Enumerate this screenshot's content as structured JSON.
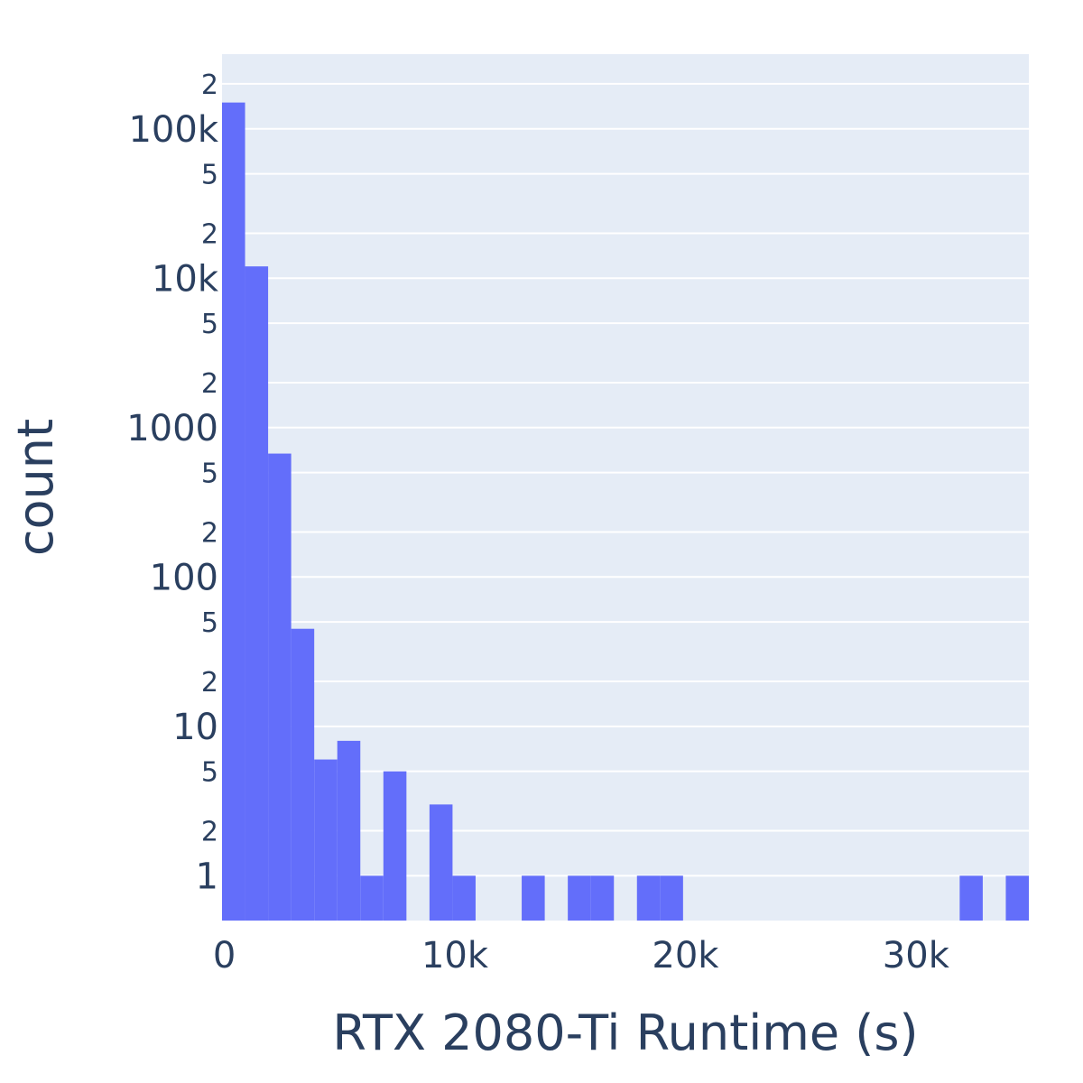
{
  "chart_data": {
    "type": "bar",
    "subtype": "histogram",
    "xlabel": "RTX 2080-Ti Runtime (s)",
    "ylabel": "count",
    "y_scale": "log",
    "x_range": [
      -100,
      34900
    ],
    "y_range_log10": [
      -0.3,
      5.5
    ],
    "bin_width": 1000,
    "x_ticks": [
      {
        "value": 0,
        "label": "0"
      },
      {
        "value": 10000,
        "label": "10k"
      },
      {
        "value": 20000,
        "label": "20k"
      },
      {
        "value": 30000,
        "label": "30k"
      }
    ],
    "y_major_ticks": [
      {
        "value": 1,
        "label": "1"
      },
      {
        "value": 10,
        "label": "10"
      },
      {
        "value": 100,
        "label": "100"
      },
      {
        "value": 1000,
        "label": "1000"
      },
      {
        "value": 10000,
        "label": "10k"
      },
      {
        "value": 100000,
        "label": "100k"
      }
    ],
    "y_minor_ticks": [
      {
        "value": 2,
        "label": "2"
      },
      {
        "value": 5,
        "label": "5"
      },
      {
        "value": 20,
        "label": "2"
      },
      {
        "value": 50,
        "label": "5"
      },
      {
        "value": 200,
        "label": "2"
      },
      {
        "value": 500,
        "label": "5"
      },
      {
        "value": 2000,
        "label": "2"
      },
      {
        "value": 5000,
        "label": "5"
      },
      {
        "value": 20000,
        "label": "2"
      },
      {
        "value": 50000,
        "label": "5"
      },
      {
        "value": 200000,
        "label": "2"
      }
    ],
    "bins": [
      {
        "x0": -100,
        "x1": 900,
        "count": 150000
      },
      {
        "x0": 900,
        "x1": 1900,
        "count": 12000
      },
      {
        "x0": 1900,
        "x1": 2900,
        "count": 670
      },
      {
        "x0": 2900,
        "x1": 3900,
        "count": 45
      },
      {
        "x0": 3900,
        "x1": 4900,
        "count": 6
      },
      {
        "x0": 4900,
        "x1": 5900,
        "count": 8
      },
      {
        "x0": 5900,
        "x1": 6900,
        "count": 1
      },
      {
        "x0": 6900,
        "x1": 7900,
        "count": 5
      },
      {
        "x0": 8900,
        "x1": 9900,
        "count": 3
      },
      {
        "x0": 9900,
        "x1": 10900,
        "count": 1
      },
      {
        "x0": 12900,
        "x1": 13900,
        "count": 1
      },
      {
        "x0": 14900,
        "x1": 15900,
        "count": 1
      },
      {
        "x0": 15900,
        "x1": 16900,
        "count": 1
      },
      {
        "x0": 17900,
        "x1": 18900,
        "count": 1
      },
      {
        "x0": 18900,
        "x1": 19900,
        "count": 1
      },
      {
        "x0": 31900,
        "x1": 32900,
        "count": 1
      },
      {
        "x0": 33900,
        "x1": 34900,
        "count": 1
      }
    ],
    "colors": {
      "bar": "#636efa",
      "plot_bg": "#e5ecf6",
      "grid": "#ffffff",
      "text": "#2a3f5f"
    },
    "grid": true,
    "legend": "none"
  }
}
